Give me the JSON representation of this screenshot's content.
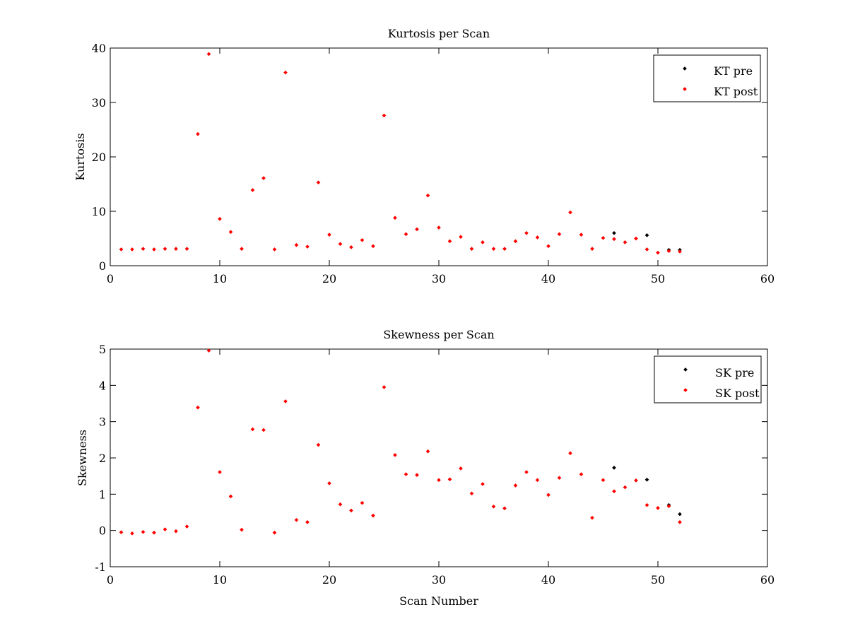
{
  "chart_data": [
    {
      "type": "scatter",
      "title": "Kurtosis per Scan",
      "xlabel": "",
      "ylabel": "Kurtosis",
      "xlim": [
        0,
        60
      ],
      "ylim": [
        0,
        40
      ],
      "xticks": [
        0,
        10,
        20,
        30,
        40,
        50,
        60
      ],
      "yticks": [
        0,
        10,
        20,
        30,
        40
      ],
      "legend_position": "top-right",
      "series": [
        {
          "name": "KT pre",
          "color": "#000000",
          "x": [
            46,
            49,
            51,
            52
          ],
          "y": [
            6.0,
            5.6,
            2.9,
            2.9
          ]
        },
        {
          "name": "KT post",
          "color": "#ff0000",
          "x": [
            1,
            2,
            3,
            4,
            5,
            6,
            7,
            8,
            9,
            10,
            11,
            12,
            13,
            14,
            15,
            16,
            17,
            18,
            19,
            20,
            21,
            22,
            23,
            24,
            25,
            26,
            27,
            28,
            29,
            30,
            31,
            32,
            33,
            34,
            35,
            36,
            37,
            38,
            39,
            40,
            41,
            42,
            43,
            44,
            45,
            46,
            47,
            48,
            49,
            50,
            51,
            52
          ],
          "y": [
            3.0,
            3.0,
            3.1,
            3.0,
            3.1,
            3.1,
            3.1,
            24.2,
            38.9,
            8.6,
            6.2,
            3.1,
            13.9,
            16.1,
            3.0,
            35.5,
            3.8,
            3.5,
            15.3,
            5.7,
            4.0,
            3.4,
            4.7,
            3.6,
            27.6,
            8.8,
            5.8,
            6.7,
            12.9,
            7.0,
            4.5,
            5.3,
            3.1,
            4.3,
            3.1,
            3.1,
            4.5,
            6.0,
            5.2,
            3.6,
            5.8,
            9.8,
            5.7,
            3.1,
            5.1,
            4.9,
            4.3,
            5.0,
            3.0,
            2.4,
            2.7,
            2.6
          ]
        }
      ]
    },
    {
      "type": "scatter",
      "title": "Skewness per Scan",
      "xlabel": "Scan Number",
      "ylabel": "Skewness",
      "xlim": [
        0,
        60
      ],
      "ylim": [
        -1,
        5
      ],
      "xticks": [
        0,
        10,
        20,
        30,
        40,
        50,
        60
      ],
      "yticks": [
        -1,
        0,
        1,
        2,
        3,
        4,
        5
      ],
      "legend_position": "top-right",
      "series": [
        {
          "name": "SK pre",
          "color": "#000000",
          "x": [
            46,
            49,
            51,
            52
          ],
          "y": [
            1.73,
            1.4,
            0.7,
            0.45
          ]
        },
        {
          "name": "SK post",
          "color": "#ff0000",
          "x": [
            1,
            2,
            3,
            4,
            5,
            6,
            7,
            8,
            9,
            10,
            11,
            12,
            13,
            14,
            15,
            16,
            17,
            18,
            19,
            20,
            21,
            22,
            23,
            24,
            25,
            26,
            27,
            28,
            29,
            30,
            31,
            32,
            33,
            34,
            35,
            36,
            37,
            38,
            39,
            40,
            41,
            42,
            43,
            44,
            45,
            46,
            47,
            48,
            49,
            50,
            51,
            52
          ],
          "y": [
            -0.05,
            -0.08,
            -0.04,
            -0.06,
            0.03,
            -0.02,
            0.11,
            3.39,
            4.96,
            1.61,
            0.94,
            0.02,
            2.79,
            2.77,
            -0.06,
            3.56,
            0.29,
            0.23,
            2.36,
            1.3,
            0.72,
            0.55,
            0.76,
            0.41,
            3.95,
            2.08,
            1.55,
            1.53,
            2.18,
            1.39,
            1.41,
            1.71,
            1.02,
            1.28,
            0.66,
            0.61,
            1.24,
            1.61,
            1.39,
            0.98,
            1.45,
            2.13,
            1.55,
            0.35,
            1.39,
            1.08,
            1.19,
            1.38,
            0.7,
            0.62,
            0.67,
            0.23
          ]
        }
      ]
    }
  ]
}
